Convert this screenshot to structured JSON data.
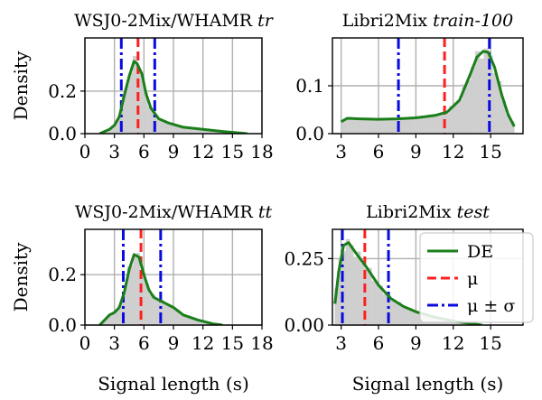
{
  "colors": {
    "de": "#1a7f1a",
    "mu": "#ff1f1f",
    "sigma": "#0a0adf",
    "hist": "#cfcfcf",
    "grid": "#b0b0b0"
  },
  "legend": {
    "de": "DE",
    "mu": "μ",
    "sigma": "μ ± σ"
  },
  "chart_data": [
    {
      "type": "area",
      "title": "WSJ0-2Mix/WHAMR ",
      "title_italic": "tr",
      "ylabel": "Density",
      "xlabel": "",
      "xlim": [
        0,
        18
      ],
      "ylim": [
        0,
        0.45
      ],
      "xticks": [
        0,
        3,
        6,
        9,
        12,
        15,
        18
      ],
      "yticks": [
        0.0,
        0.2
      ],
      "ytick_labels": [
        "0.0",
        "0.2"
      ],
      "mu": 5.4,
      "mu_minus_sigma": 3.7,
      "mu_plus_sigma": 7.1,
      "de": [
        [
          1.5,
          0.0
        ],
        [
          2.0,
          0.01
        ],
        [
          2.5,
          0.02
        ],
        [
          3.0,
          0.04
        ],
        [
          3.5,
          0.08
        ],
        [
          4.0,
          0.18
        ],
        [
          4.5,
          0.27
        ],
        [
          5.0,
          0.34
        ],
        [
          5.3,
          0.33
        ],
        [
          5.8,
          0.28
        ],
        [
          6.2,
          0.19
        ],
        [
          6.7,
          0.12
        ],
        [
          7.5,
          0.07
        ],
        [
          8.5,
          0.05
        ],
        [
          10.0,
          0.03
        ],
        [
          12.0,
          0.02
        ],
        [
          14.0,
          0.01
        ],
        [
          16.5,
          0.0
        ]
      ]
    },
    {
      "type": "area",
      "title": "Libri2Mix ",
      "title_italic": "train-100",
      "ylabel": "",
      "xlabel": "",
      "xlim": [
        2.3,
        17.6
      ],
      "ylim": [
        0,
        0.2
      ],
      "xticks": [
        3,
        6,
        9,
        12,
        15
      ],
      "yticks": [
        0.0,
        0.1
      ],
      "ytick_labels": [
        "0.0",
        "0.1"
      ],
      "mu": 11.3,
      "mu_minus_sigma": 7.6,
      "mu_plus_sigma": 14.9,
      "de": [
        [
          3.0,
          0.025
        ],
        [
          3.5,
          0.032
        ],
        [
          4.5,
          0.031
        ],
        [
          6.0,
          0.03
        ],
        [
          7.5,
          0.031
        ],
        [
          9.0,
          0.033
        ],
        [
          10.5,
          0.038
        ],
        [
          11.5,
          0.045
        ],
        [
          12.5,
          0.07
        ],
        [
          13.3,
          0.12
        ],
        [
          13.9,
          0.16
        ],
        [
          14.4,
          0.172
        ],
        [
          14.8,
          0.17
        ],
        [
          15.3,
          0.14
        ],
        [
          15.9,
          0.08
        ],
        [
          16.4,
          0.04
        ],
        [
          16.9,
          0.015
        ]
      ]
    },
    {
      "type": "area",
      "title": "WSJ0-2Mix/WHAMR ",
      "title_italic": "tt",
      "ylabel": "Density",
      "xlabel": "Signal length (s)",
      "xlim": [
        0,
        18
      ],
      "ylim": [
        0,
        0.38
      ],
      "xticks": [
        0,
        3,
        6,
        9,
        12,
        15,
        18
      ],
      "yticks": [
        0.0,
        0.2
      ],
      "ytick_labels": [
        "0.0",
        "0.2"
      ],
      "mu": 5.7,
      "mu_minus_sigma": 3.9,
      "mu_plus_sigma": 7.7,
      "de": [
        [
          1.5,
          0.0
        ],
        [
          2.0,
          0.02
        ],
        [
          2.5,
          0.04
        ],
        [
          3.0,
          0.05
        ],
        [
          3.5,
          0.07
        ],
        [
          4.0,
          0.13
        ],
        [
          4.5,
          0.22
        ],
        [
          5.0,
          0.28
        ],
        [
          5.5,
          0.27
        ],
        [
          6.0,
          0.2
        ],
        [
          6.5,
          0.14
        ],
        [
          7.0,
          0.11
        ],
        [
          8.0,
          0.09
        ],
        [
          9.0,
          0.07
        ],
        [
          10.0,
          0.04
        ],
        [
          11.5,
          0.02
        ],
        [
          13.0,
          0.005
        ],
        [
          14.0,
          0.0
        ]
      ]
    },
    {
      "type": "area",
      "title": "Libri2Mix ",
      "title_italic": "test",
      "ylabel": "",
      "xlabel": "Signal length (s)",
      "xlim": [
        2.3,
        17.6
      ],
      "ylim": [
        0,
        0.36
      ],
      "xticks": [
        3,
        6,
        9,
        12,
        15
      ],
      "yticks": [
        0.0,
        0.25
      ],
      "ytick_labels": [
        "0.00",
        "0.25"
      ],
      "mu": 4.9,
      "mu_minus_sigma": 3.1,
      "mu_plus_sigma": 6.8,
      "de": [
        [
          2.5,
          0.08
        ],
        [
          2.8,
          0.2
        ],
        [
          3.2,
          0.3
        ],
        [
          3.6,
          0.31
        ],
        [
          4.2,
          0.27
        ],
        [
          5.0,
          0.22
        ],
        [
          6.0,
          0.15
        ],
        [
          7.0,
          0.1
        ],
        [
          8.0,
          0.07
        ],
        [
          9.0,
          0.05
        ],
        [
          10.5,
          0.03
        ],
        [
          12.0,
          0.015
        ],
        [
          13.5,
          0.005
        ],
        [
          14.3,
          0.0
        ]
      ]
    }
  ]
}
